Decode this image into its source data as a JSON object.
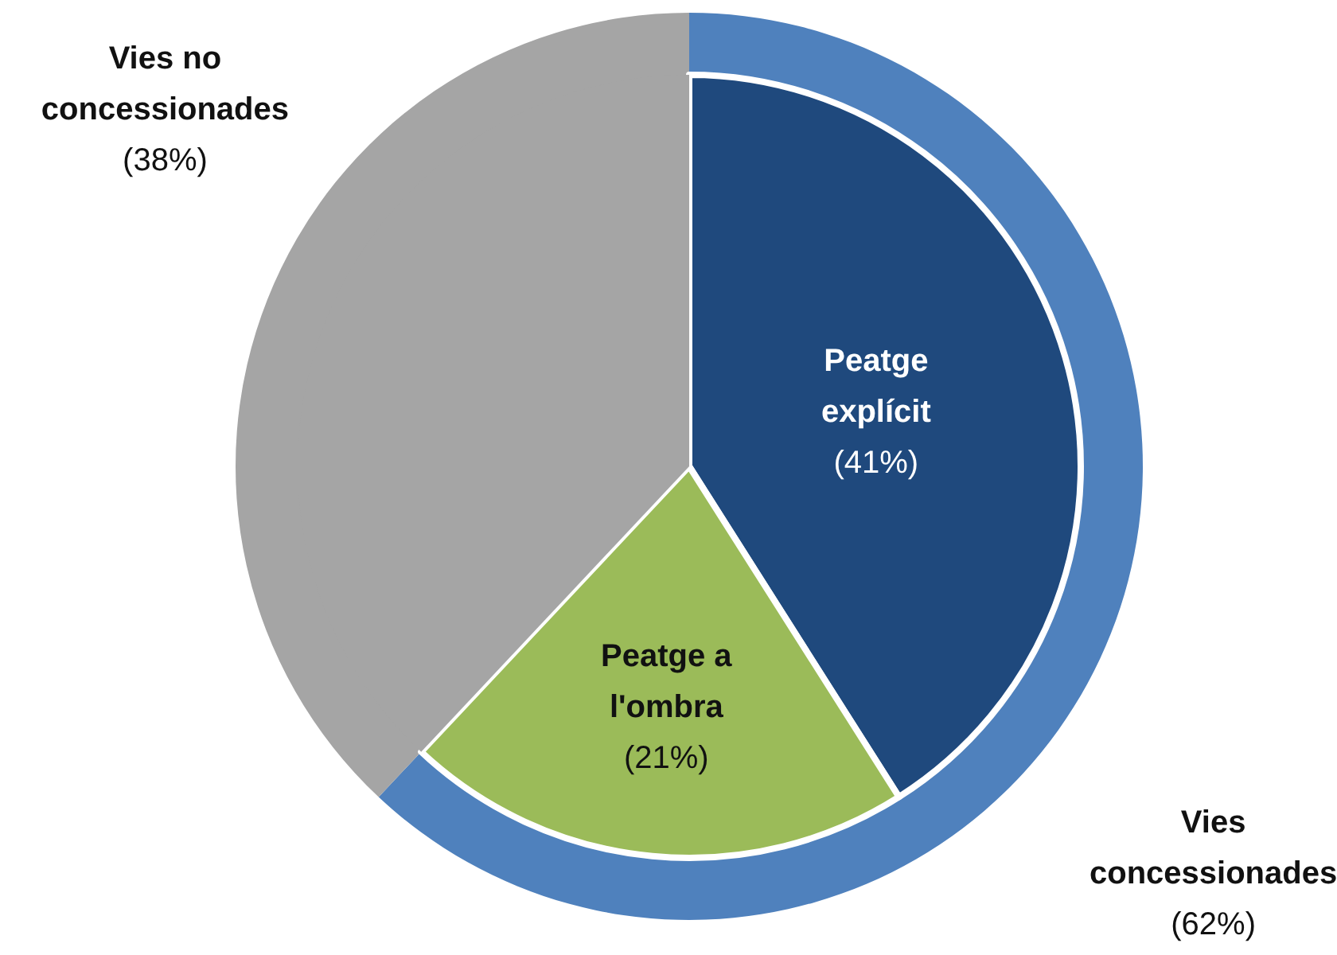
{
  "chart_data": [
    {
      "type": "pie",
      "categories": [
        "Peatge explícit",
        "Peatge a l'ombra",
        "Vies no concessionades"
      ],
      "values": [
        41,
        21,
        38
      ],
      "colors": [
        "#1f497d",
        "#9bbb59",
        "#a5a5a5"
      ],
      "value_labels": [
        "(41%)",
        "(21%)",
        "(38%)"
      ]
    },
    {
      "type": "donut",
      "categories": [
        "Vies concessionades",
        null
      ],
      "values": [
        62,
        38
      ],
      "colors": [
        "#4f81bd",
        "#a5a5a5"
      ],
      "value_labels": [
        "(62%)",
        null
      ]
    }
  ]
}
